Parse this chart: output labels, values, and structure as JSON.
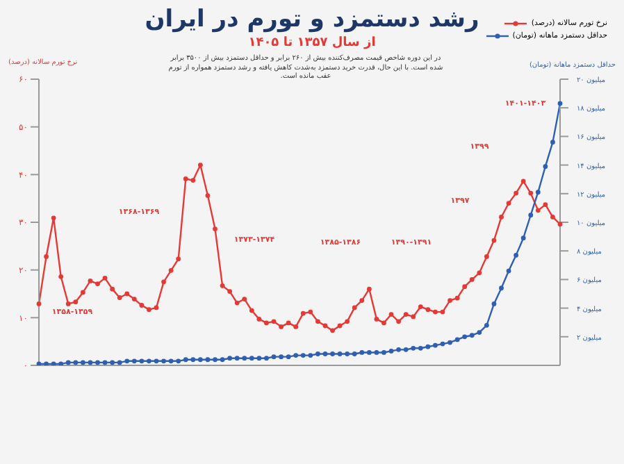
{
  "chart_data": {
    "type": "line",
    "title": "رشد دستمزد و تورم در ایران",
    "subtitle": "از سال ۱۳۵۷ تا ۱۴۰۵",
    "annotations": [
      "در این دوره شاخص قیمت مصرف‌کننده بیش از ۲۶۰ برابر و حداقل دستمزد بیش از ۳۵۰۰ برابر شده است. با این حال، قدرت خرید دستمزد به‌شدت کاهش یافته و رشد دستمزد همواره از تورم عقب مانده است.",
      "۱۳۵۸-۱۳۵۹",
      "۱۳۶۸-۱۳۶۹",
      "۱۳۷۳-۱۳۷۴",
      "۱۳۸۵-۱۳۸۶",
      "۱۳۹۰-۱۳۹۱",
      "۱۳۹۷",
      "۱۳۹۹",
      "۱۴۰۱-۱۴۰۳"
    ],
    "ylabel": "نرخ تورم سالانه (درصد)",
    "y2label": "حداقل دستمزد ماهانه (تومان)",
    "categories": [
      null,
      null,
      null,
      null,
      null,
      null,
      null,
      null,
      null,
      null,
      null,
      null,
      null,
      null,
      null,
      null,
      null,
      null,
      null,
      null,
      null,
      null,
      null,
      null,
      null,
      null,
      null,
      null,
      null,
      null,
      null,
      null,
      null,
      null,
      null,
      null,
      null,
      null,
      null,
      null,
      null,
      null,
      null,
      null,
      null,
      null,
      null,
      null,
      null,
      null,
      null,
      null,
      null,
      null,
      null,
      null,
      null,
      null,
      null,
      null,
      null,
      null,
      null,
      null,
      null,
      null,
      null,
      null,
      null,
      null,
      null,
      null
    ],
    "series": [
      {
        "name": "نرخ تورم سالانه (درصد)",
        "color": "#e53935",
        "values": [
          12.9,
          22.8,
          30.9,
          18.6,
          12.9,
          13.3,
          15.3,
          17.7,
          17.1,
          18.3,
          16.0,
          14.2,
          15.0,
          13.9,
          12.6,
          11.7,
          12.1,
          17.5,
          19.9,
          22.3,
          39.1,
          38.8,
          42.0,
          35.6,
          28.6,
          16.7,
          15.5,
          13.1,
          13.9,
          11.5,
          9.7,
          8.9,
          9.2,
          8.1,
          8.9,
          8.1,
          10.9,
          11.2,
          9.2,
          8.3,
          7.3,
          8.3,
          9.2,
          12.1,
          13.6,
          16.0,
          9.7,
          8.9,
          10.7,
          9.2,
          10.7,
          10.2,
          12.3,
          11.7,
          11.2,
          11.2,
          13.6,
          14.1,
          16.5,
          18.0,
          19.4,
          22.8,
          26.2,
          31.1,
          34.0,
          36.1,
          38.6,
          36.1,
          32.5,
          33.7,
          31.1,
          29.6
        ]
      },
      {
        "name": "حداقل دستمزد ماهانه (تومان)",
        "color": "#2f5fb3",
        "axis": "y2",
        "values": [
          0.1,
          0.1,
          0.1,
          0.1,
          0.2,
          0.2,
          0.2,
          0.2,
          0.2,
          0.2,
          0.2,
          0.2,
          0.3,
          0.3,
          0.3,
          0.3,
          0.3,
          0.3,
          0.3,
          0.3,
          0.4,
          0.4,
          0.4,
          0.4,
          0.4,
          0.4,
          0.5,
          0.5,
          0.5,
          0.5,
          0.5,
          0.5,
          0.6,
          0.6,
          0.6,
          0.7,
          0.7,
          0.7,
          0.8,
          0.8,
          0.8,
          0.8,
          0.8,
          0.8,
          0.9,
          0.9,
          0.9,
          0.9,
          1.0,
          1.1,
          1.1,
          1.2,
          1.2,
          1.3,
          1.4,
          1.5,
          1.6,
          1.8,
          2.0,
          2.1,
          2.3,
          2.8,
          4.3,
          5.4,
          6.6,
          7.7,
          8.9,
          10.5,
          12.1,
          13.9,
          15.6,
          18.3
        ]
      }
    ],
    "ylim": [
      0,
      60
    ],
    "yticks": [
      {
        "value": 0,
        "label": "۰"
      },
      {
        "value": 10,
        "label": "۱۰"
      },
      {
        "value": 20,
        "label": "۲۰"
      },
      {
        "value": 30,
        "label": "۳۰"
      },
      {
        "value": 40,
        "label": "۴۰"
      },
      {
        "value": 50,
        "label": "۵۰"
      },
      {
        "value": 60,
        "label": "۶۰"
      }
    ],
    "y2lim": [
      0,
      20
    ],
    "y2ticks": [
      {
        "value": 2,
        "label": "۲ میلیون"
      },
      {
        "value": 4,
        "label": "۴ میلیون"
      },
      {
        "value": 6,
        "label": "۶ میلیون"
      },
      {
        "value": 8,
        "label": "۸ میلیون"
      },
      {
        "value": 10,
        "label": "۱۰ میلیون"
      },
      {
        "value": 12,
        "label": "۱۲ میلیون"
      },
      {
        "value": 14,
        "label": "۱۴ میلیون"
      },
      {
        "value": 16,
        "label": "۱۶ میلیون"
      },
      {
        "value": 18,
        "label": "۱۸ میلیون"
      },
      {
        "value": 20,
        "label": "۲۰ میلیون"
      }
    ],
    "marker": "circle",
    "line_style": "solid",
    "legend": "top right"
  }
}
